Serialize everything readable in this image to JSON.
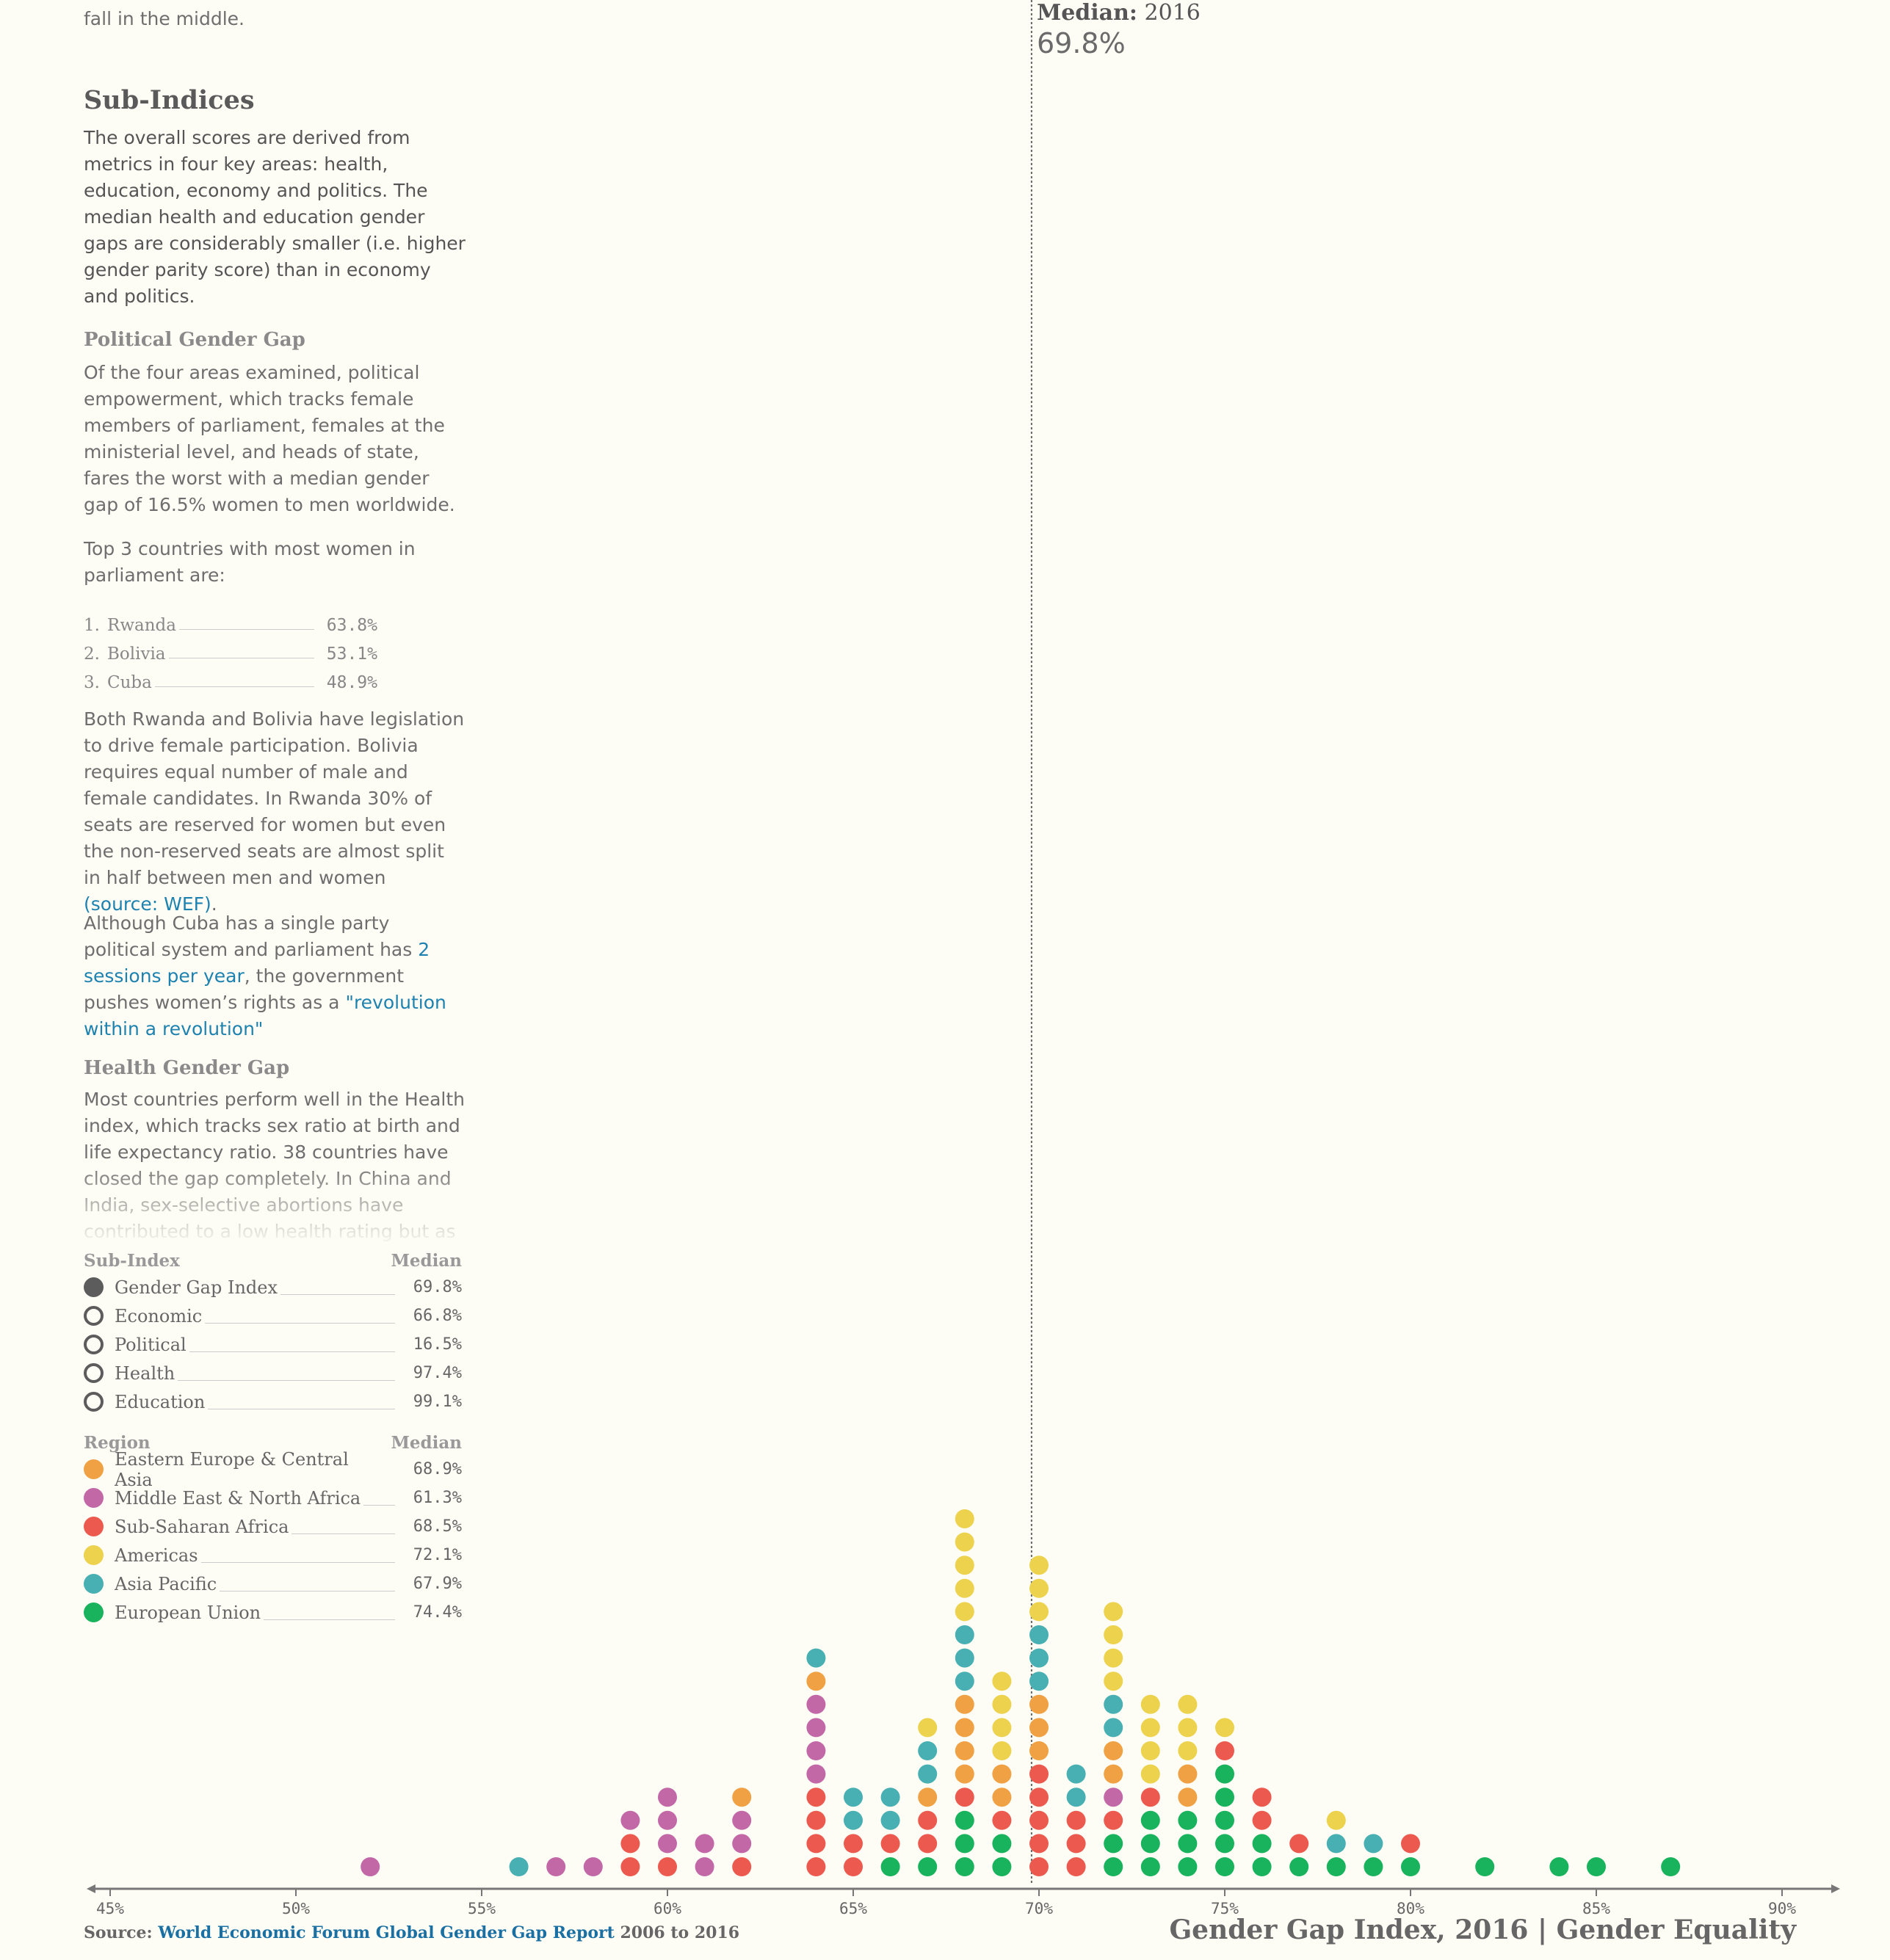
{
  "sidebar": {
    "intro_tail": "fall in the middle.",
    "subindices_title": "Sub-Indices",
    "subindices_text": "The overall scores are derived from metrics in four key areas: health, education, economy and politics. The median health and education gender gaps are considerably smaller (i.e. higher gender parity score) than in economy and politics.",
    "political_title": "Political Gender Gap",
    "political_text": "Of the four areas examined, political empowerment, which tracks female members of parliament, females at the ministerial level, and heads of state, fares the worst with a median gender gap of 16.5% women to men worldwide.",
    "top3_intro": "Top 3 countries with most women in parliament are:",
    "top3": [
      {
        "rank": "1.",
        "name": "Rwanda",
        "value": "63.8%"
      },
      {
        "rank": "2.",
        "name": "Bolivia",
        "value": "53.1%"
      },
      {
        "rank": "3.",
        "name": "Cuba",
        "value": "48.9%"
      }
    ],
    "legislation_text": "Both Rwanda and Bolivia have legislation to drive female participation. Bolivia requires equal number of male and female candidates. In Rwanda 30% of seats are reserved for women but even the non-reserved seats are almost split in half between men and women",
    "legislation_link": "(source: WEF)",
    "legislation_end": ".",
    "cuba_text_1": "Although Cuba has a single party political system and parliament has",
    "cuba_link_1": "2 sessions per year",
    "cuba_text_2": ", the government pushes women’s rights as a",
    "cuba_link_2": "\"revolution within a revolution\"",
    "health_title": "Health Gender Gap",
    "health_text": "Most countries perform well in the Health index, which tracks sex ratio at birth and life expectancy ratio. 38 countries have closed the gap completely. In China and India, sex-selective abortions have contributed to a low health rating but as"
  },
  "legend": {
    "subindex_header": "Sub-Index",
    "region_header": "Region",
    "median_header": "Median",
    "subindices": [
      {
        "name": "Gender Gap Index",
        "median": "69.8%",
        "filled": true
      },
      {
        "name": "Economic",
        "median": "66.8%",
        "filled": false
      },
      {
        "name": "Political",
        "median": "16.5%",
        "filled": false
      },
      {
        "name": "Health",
        "median": "97.4%",
        "filled": false
      },
      {
        "name": "Education",
        "median": "99.1%",
        "filled": false
      }
    ],
    "regions": [
      {
        "name": "Eastern Europe & Central Asia",
        "median": "68.9%",
        "color": "#f0a143"
      },
      {
        "name": "Middle East & North Africa",
        "median": "61.3%",
        "color": "#c368a7"
      },
      {
        "name": "Sub-Saharan Africa",
        "median": "68.5%",
        "color": "#ec5a4f"
      },
      {
        "name": "Americas",
        "median": "72.1%",
        "color": "#ecd24d"
      },
      {
        "name": "Asia Pacific",
        "median": "67.9%",
        "color": "#48b0b2"
      },
      {
        "name": "European Union",
        "median": "74.4%",
        "color": "#19b35e"
      }
    ]
  },
  "median": {
    "label": "Median:",
    "year": "2016",
    "value": "69.8%",
    "x": 69.8
  },
  "chart_data": {
    "type": "scatter",
    "subtype": "dot-plot",
    "x_ticks": [
      "45%",
      "50%",
      "55%",
      "60%",
      "65%",
      "70%",
      "75%",
      "80%",
      "85%",
      "90%"
    ],
    "xlim": [
      44.5,
      92
    ],
    "regions": [
      "EECA",
      "MENA",
      "SSA",
      "AM",
      "AP",
      "EU"
    ],
    "colors": {
      "EECA": "#f0a143",
      "MENA": "#c368a7",
      "SSA": "#ec5a4f",
      "AM": "#ecd24d",
      "AP": "#48b0b2",
      "EU": "#19b35e"
    },
    "stacks": [
      {
        "x": 52,
        "dots": [
          "MENA"
        ]
      },
      {
        "x": 56,
        "dots": [
          "AP"
        ]
      },
      {
        "x": 57,
        "dots": [
          "MENA"
        ]
      },
      {
        "x": 58,
        "dots": [
          "MENA"
        ]
      },
      {
        "x": 59,
        "dots": [
          "SSA",
          "SSA",
          "MENA"
        ]
      },
      {
        "x": 60,
        "dots": [
          "SSA",
          "MENA",
          "MENA",
          "MENA"
        ]
      },
      {
        "x": 61,
        "dots": [
          "MENA",
          "MENA"
        ]
      },
      {
        "x": 62,
        "dots": [
          "SSA",
          "MENA",
          "MENA",
          "EECA"
        ]
      },
      {
        "x": 64,
        "dots": [
          "SSA",
          "SSA",
          "SSA",
          "SSA",
          "MENA",
          "MENA",
          "MENA",
          "MENA",
          "EECA",
          "AP"
        ]
      },
      {
        "x": 65,
        "dots": [
          "SSA",
          "SSA",
          "AP",
          "AP"
        ]
      },
      {
        "x": 66,
        "dots": [
          "EU",
          "SSA",
          "AP",
          "AP"
        ]
      },
      {
        "x": 67,
        "dots": [
          "EU",
          "SSA",
          "SSA",
          "EECA",
          "AP",
          "AP",
          "AM"
        ]
      },
      {
        "x": 68,
        "dots": [
          "EU",
          "EU",
          "EU",
          "SSA",
          "EECA",
          "EECA",
          "EECA",
          "EECA",
          "AP",
          "AP",
          "AP",
          "AM",
          "AM",
          "AM",
          "AM",
          "AM"
        ]
      },
      {
        "x": 69,
        "dots": [
          "EU",
          "EU",
          "SSA",
          "EECA",
          "EECA",
          "AM",
          "AM",
          "AM",
          "AM"
        ]
      },
      {
        "x": 70,
        "dots": [
          "SSA",
          "SSA",
          "SSA",
          "SSA",
          "SSA",
          "EECA",
          "EECA",
          "EECA",
          "AP",
          "AP",
          "AP",
          "AM",
          "AM",
          "AM"
        ]
      },
      {
        "x": 71,
        "dots": [
          "SSA",
          "SSA",
          "SSA",
          "AP",
          "AP"
        ]
      },
      {
        "x": 72,
        "dots": [
          "EU",
          "EU",
          "SSA",
          "MENA",
          "EECA",
          "EECA",
          "AP",
          "AP",
          "AM",
          "AM",
          "AM",
          "AM"
        ]
      },
      {
        "x": 73,
        "dots": [
          "EU",
          "EU",
          "EU",
          "SSA",
          "AM",
          "AM",
          "AM",
          "AM"
        ]
      },
      {
        "x": 74,
        "dots": [
          "EU",
          "EU",
          "EU",
          "EECA",
          "EECA",
          "AM",
          "AM",
          "AM"
        ]
      },
      {
        "x": 75,
        "dots": [
          "EU",
          "EU",
          "EU",
          "EU",
          "EU",
          "SSA",
          "AM"
        ]
      },
      {
        "x": 76,
        "dots": [
          "EU",
          "EU",
          "SSA",
          "SSA"
        ]
      },
      {
        "x": 77,
        "dots": [
          "EU",
          "SSA"
        ]
      },
      {
        "x": 78,
        "dots": [
          "EU",
          "AP",
          "AM"
        ]
      },
      {
        "x": 79,
        "dots": [
          "EU",
          "AP"
        ]
      },
      {
        "x": 80,
        "dots": [
          "EU",
          "SSA"
        ]
      },
      {
        "x": 82,
        "dots": [
          "EU"
        ]
      },
      {
        "x": 84,
        "dots": [
          "EU"
        ]
      },
      {
        "x": 85,
        "dots": [
          "EU"
        ]
      },
      {
        "x": 87,
        "dots": [
          "EU"
        ]
      }
    ]
  },
  "footer": {
    "source_label": "Source:",
    "source_link": "World Economic Forum Global Gender Gap Report",
    "source_years": "2006 to 2016",
    "title": "Gender Gap Index, 2016 | Gender Equality"
  }
}
